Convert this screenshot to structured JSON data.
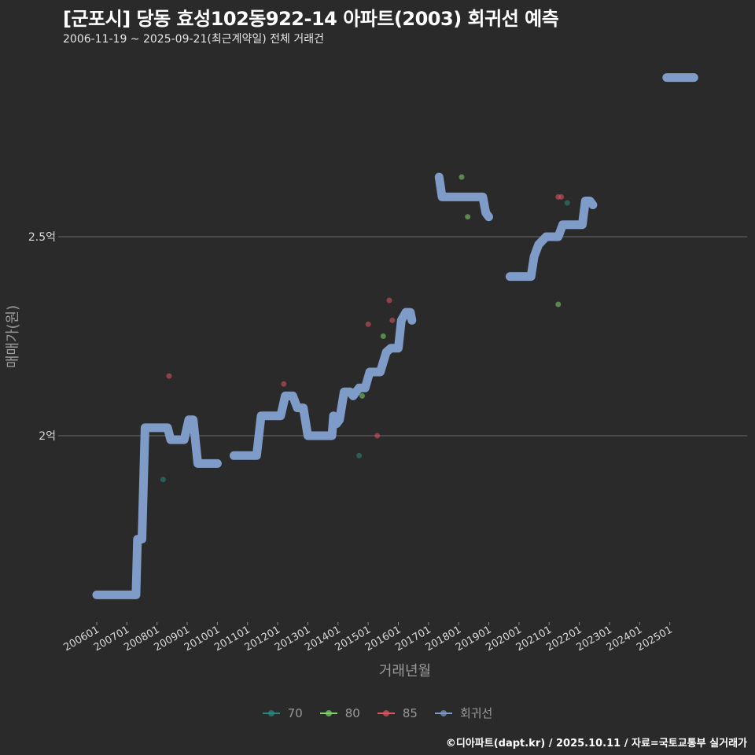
{
  "header": {
    "title": "[군포시] 당동 효성102동922-14 아파트(2003) 회귀선 예측",
    "subtitle": "2006-11-19 ~ 2025-09-21(최근계약일) 전체 거래건"
  },
  "footer": {
    "credit": "©디아파트(dapt.kr) / 2025.10.11 / 자료=국토교통부 실거래가"
  },
  "colors": {
    "background": "#2a2a2b",
    "gridline": "#6b6b6b",
    "series_70": "#2a8a80",
    "series_80": "#7fd46a",
    "series_85": "#e0545f",
    "regression": "#7f9cc8"
  },
  "legend": {
    "items": [
      {
        "label": "70",
        "color": "#2a8a80"
      },
      {
        "label": "80",
        "color": "#7fd46a"
      },
      {
        "label": "85",
        "color": "#e0545f"
      },
      {
        "label": "회귀선",
        "color": "#7f9cc8"
      }
    ]
  },
  "chart_data": {
    "type": "scatter",
    "title": "[군포시] 당동 효성102동922-14 아파트(2003) 회귀선 예측",
    "subtitle": "2006-11-19 ~ 2025-09-21(최근계약일) 전체 거래건",
    "xlabel": "거래년월",
    "ylabel": "매매가(원)",
    "x_ticks": [
      "200601",
      "200701",
      "200801",
      "200901",
      "201001",
      "201101",
      "201201",
      "201301",
      "201401",
      "201501",
      "201601",
      "201701",
      "201801",
      "201901",
      "202001",
      "202101",
      "202201",
      "202301",
      "202401",
      "202501"
    ],
    "y_ticks": [
      {
        "value": 2.0,
        "label": "2억"
      },
      {
        "value": 2.5,
        "label": "2.5억"
      }
    ],
    "xlim": [
      2005.5,
      2028.0
    ],
    "ylim": [
      1.53,
      2.97
    ],
    "y_unit": "억원",
    "grid": "horizontal",
    "legend_position": "bottom",
    "series": [
      {
        "name": "70",
        "type": "scatter",
        "color": "#2a8a80",
        "points": [
          [
            2008.2,
            1.89
          ],
          [
            2014.7,
            1.95
          ],
          [
            2021.6,
            2.585
          ]
        ]
      },
      {
        "name": "80",
        "type": "scatter",
        "color": "#7fd46a",
        "points": [
          [
            2014.8,
            2.1
          ],
          [
            2015.5,
            2.25
          ],
          [
            2018.1,
            2.65
          ],
          [
            2018.3,
            2.55
          ],
          [
            2021.3,
            2.33
          ]
        ]
      },
      {
        "name": "85",
        "type": "scatter",
        "color": "#e0545f",
        "points": [
          [
            2008.4,
            2.15
          ],
          [
            2012.2,
            2.13
          ],
          [
            2015.0,
            2.28
          ],
          [
            2015.3,
            2.0
          ],
          [
            2015.7,
            2.34
          ],
          [
            2015.8,
            2.29
          ],
          [
            2021.3,
            2.6
          ],
          [
            2021.4,
            2.6
          ]
        ]
      },
      {
        "name": "회귀선",
        "type": "line",
        "color": "#7f9cc8",
        "segments": [
          [
            [
              2006.0,
              1.6
            ],
            [
              2007.3,
              1.6
            ],
            [
              2007.35,
              1.74
            ],
            [
              2007.5,
              1.74
            ],
            [
              2007.6,
              2.02
            ],
            [
              2008.35,
              2.02
            ],
            [
              2008.45,
              1.99
            ],
            [
              2008.9,
              1.99
            ],
            [
              2009.05,
              2.04
            ],
            [
              2009.2,
              2.04
            ],
            [
              2009.35,
              1.93
            ],
            [
              2010.0,
              1.93
            ]
          ],
          [
            [
              2010.55,
              1.95
            ],
            [
              2011.3,
              1.95
            ],
            [
              2011.45,
              2.05
            ],
            [
              2012.1,
              2.05
            ],
            [
              2012.25,
              2.1
            ],
            [
              2012.5,
              2.1
            ],
            [
              2012.65,
              2.07
            ],
            [
              2012.85,
              2.07
            ],
            [
              2013.0,
              2.0
            ],
            [
              2013.8,
              2.0
            ],
            [
              2013.85,
              2.05
            ],
            [
              2013.95,
              2.03
            ],
            [
              2014.05,
              2.04
            ],
            [
              2014.2,
              2.11
            ],
            [
              2014.4,
              2.11
            ],
            [
              2014.5,
              2.1
            ],
            [
              2014.7,
              2.12
            ],
            [
              2014.9,
              2.12
            ],
            [
              2015.05,
              2.16
            ],
            [
              2015.4,
              2.16
            ],
            [
              2015.6,
              2.21
            ],
            [
              2015.75,
              2.22
            ],
            [
              2016.0,
              2.22
            ],
            [
              2016.1,
              2.29
            ],
            [
              2016.25,
              2.31
            ],
            [
              2016.4,
              2.31
            ],
            [
              2016.45,
              2.29
            ]
          ],
          [
            [
              2017.35,
              2.65
            ],
            [
              2017.45,
              2.6
            ],
            [
              2018.8,
              2.6
            ],
            [
              2018.9,
              2.56
            ],
            [
              2019.0,
              2.55
            ]
          ],
          [
            [
              2019.7,
              2.4
            ],
            [
              2020.4,
              2.4
            ],
            [
              2020.5,
              2.45
            ],
            [
              2020.65,
              2.48
            ],
            [
              2020.9,
              2.5
            ],
            [
              2021.3,
              2.5
            ],
            [
              2021.45,
              2.53
            ],
            [
              2022.1,
              2.53
            ],
            [
              2022.2,
              2.59
            ],
            [
              2022.35,
              2.59
            ],
            [
              2022.45,
              2.58
            ]
          ],
          [
            [
              2024.9,
              2.9
            ],
            [
              2025.8,
              2.9
            ]
          ]
        ]
      }
    ]
  }
}
